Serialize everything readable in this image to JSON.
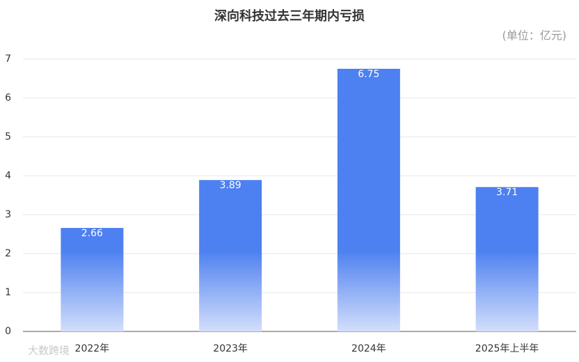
{
  "chart_data": {
    "type": "bar",
    "title": "深向科技过去三年期内亏损",
    "subtitle": "(单位：亿元)",
    "categories": [
      "2022年",
      "2023年",
      "2024年",
      "2025年上半年"
    ],
    "values": [
      2.66,
      3.89,
      6.75,
      3.71
    ],
    "color": "#4d80f0",
    "ylim": [
      0,
      7
    ],
    "yticks": [
      0,
      1,
      2,
      3,
      4,
      5,
      6,
      7
    ],
    "grid": true,
    "watermark": "大数跨境"
  }
}
